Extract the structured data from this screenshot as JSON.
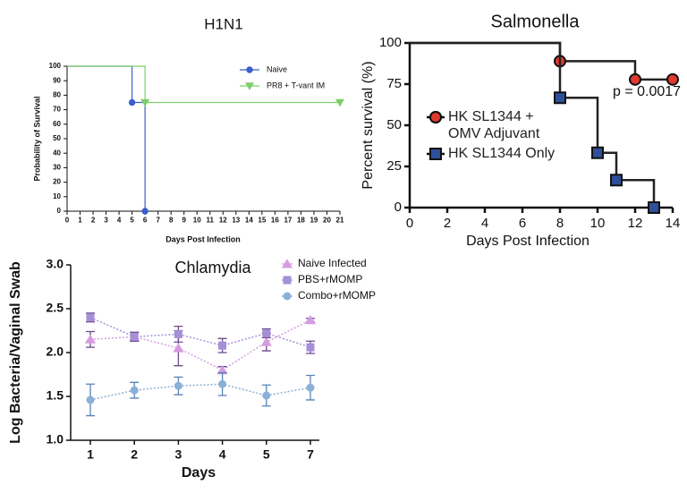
{
  "chart_data": [
    {
      "type": "step",
      "title": "H1N1",
      "x_label": "Days Post Infection",
      "y_label": "Probability of Survival",
      "xlim": [
        0,
        21
      ],
      "xticks": [
        0,
        1,
        2,
        3,
        4,
        5,
        6,
        7,
        8,
        9,
        10,
        11,
        12,
        13,
        14,
        15,
        16,
        17,
        18,
        19,
        20,
        21
      ],
      "ylim": [
        0,
        100
      ],
      "yticks": [
        0,
        10,
        20,
        30,
        40,
        50,
        60,
        70,
        80,
        90,
        100
      ],
      "series": [
        {
          "name": "Naive",
          "color": "#3a5fcd",
          "marker": "circle",
          "x": [
            0,
            5,
            6
          ],
          "values": [
            100,
            75,
            0
          ]
        },
        {
          "name": "PR8 + T-vant IM",
          "color": "#7ccf6a",
          "marker": "triangle",
          "x": [
            0,
            6,
            21
          ],
          "values": [
            100,
            75,
            75
          ]
        }
      ]
    },
    {
      "type": "step",
      "title": "Salmonella",
      "x_label": "Days Post Infection",
      "y_label": "Percent survival (%)",
      "annotation": "p = 0.0017",
      "line_color": "#222222",
      "xlim": [
        0,
        14
      ],
      "xticks": [
        0,
        2,
        4,
        6,
        8,
        10,
        12,
        14
      ],
      "ylim": [
        0,
        100
      ],
      "yticks": [
        0,
        25,
        50,
        75,
        100
      ],
      "series": [
        {
          "name": "HK SL1344 + OMV Adjuvant",
          "color": "#e03a2e",
          "marker": "circle",
          "x": [
            0,
            8,
            12,
            14
          ],
          "values": [
            100,
            88.9,
            77.8,
            77.8
          ]
        },
        {
          "name": "HK SL1344 Only",
          "color": "#2f4f9a",
          "marker": "square",
          "x": [
            0,
            8,
            10,
            11,
            13
          ],
          "values": [
            100,
            66.7,
            33.3,
            16.7,
            0
          ]
        }
      ]
    },
    {
      "type": "line",
      "title": "Chlamydia",
      "x_label": "Days",
      "y_label": "Log Bacteria/Vaginal Swab",
      "categories": [
        "1",
        "2",
        "3",
        "4",
        "5",
        "7"
      ],
      "ylim": [
        1,
        3
      ],
      "yticks": [
        {
          "value": 1,
          "label": "1.0"
        },
        {
          "value": 1.5,
          "label": "1.5"
        },
        {
          "value": 2,
          "label": "2.0"
        },
        {
          "value": 2.5,
          "label": "2.5"
        },
        {
          "value": 3,
          "label": "3.0"
        }
      ],
      "series": [
        {
          "name": "Naive Infected",
          "color": "#d69ce0",
          "marker": "triangle-up",
          "values": [
            2.15,
            2.18,
            2.05,
            1.8,
            2.12,
            2.37
          ],
          "errors": [
            0.09,
            0.05,
            0.2,
            0.04,
            0.1,
            0.02
          ]
        },
        {
          "name": "PBS+rMOMP",
          "color": "#a58fd6",
          "marker": "square",
          "values": [
            2.4,
            2.18,
            2.21,
            2.08,
            2.22,
            2.06
          ],
          "errors": [
            0.05,
            0.05,
            0.09,
            0.08,
            0.05,
            0.07
          ]
        },
        {
          "name": "Combo+rMOMP",
          "color": "#8ab0d8",
          "marker": "circle",
          "values": [
            1.46,
            1.57,
            1.62,
            1.64,
            1.51,
            1.6
          ],
          "errors": [
            0.18,
            0.09,
            0.1,
            0.13,
            0.12,
            0.14
          ]
        }
      ]
    }
  ]
}
